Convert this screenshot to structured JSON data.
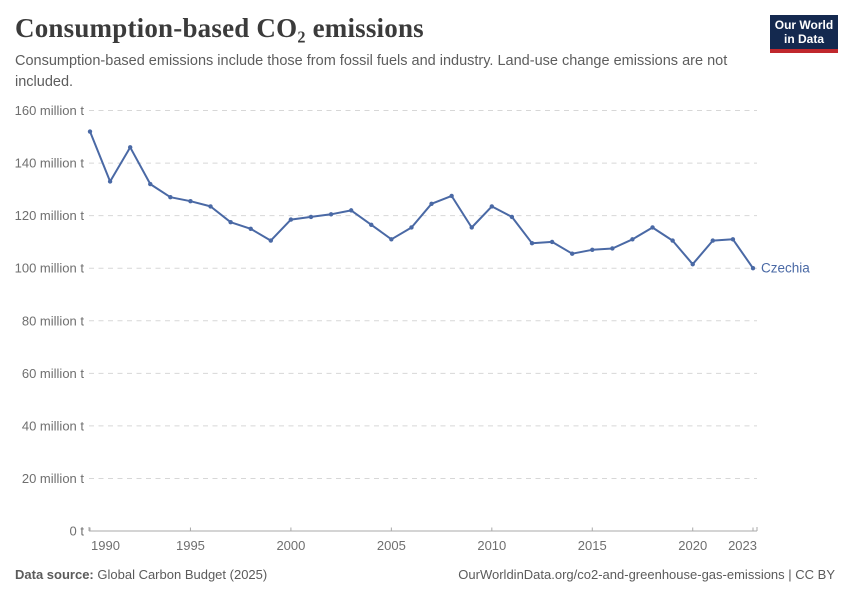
{
  "header": {
    "title": "Consumption-based CO₂ emissions",
    "subtitle": "Consumption-based emissions include those from fossil fuels and industry. Land-use change emissions are not included.",
    "logo": {
      "line1": "Our World",
      "line2": "in Data"
    }
  },
  "chart_data": {
    "type": "line",
    "title": "Consumption-based CO₂ emissions",
    "entity_label": "Czechia",
    "unit": "million t",
    "x": [
      1990,
      1991,
      1992,
      1993,
      1994,
      1995,
      1996,
      1997,
      1998,
      1999,
      2000,
      2001,
      2002,
      2003,
      2004,
      2005,
      2006,
      2007,
      2008,
      2009,
      2010,
      2011,
      2012,
      2013,
      2014,
      2015,
      2016,
      2017,
      2018,
      2019,
      2020,
      2021,
      2022,
      2023
    ],
    "series": [
      {
        "name": "Czechia",
        "color": "#4a69a5",
        "values": [
          152,
          133,
          146,
          132,
          127,
          125.5,
          123.5,
          117.5,
          115,
          110.5,
          118.5,
          119.5,
          120.5,
          122,
          116.5,
          111,
          115.5,
          124.5,
          127.5,
          115.5,
          123.5,
          119.5,
          109.5,
          110,
          105.5,
          107,
          107.5,
          111,
          115.5,
          110.5,
          101.5,
          110.5,
          111,
          100
        ]
      }
    ],
    "ylim": [
      0,
      160
    ],
    "xlim": [
      1990,
      2023
    ],
    "yticks": [
      0,
      20,
      40,
      60,
      80,
      100,
      120,
      140,
      160
    ],
    "ytick_labels": [
      "0 t",
      "20 million t",
      "40 million t",
      "60 million t",
      "80 million t",
      "100 million t",
      "120 million t",
      "140 million t",
      "160 million t"
    ],
    "xticks": [
      1990,
      1995,
      2000,
      2005,
      2010,
      2015,
      2020,
      2023
    ],
    "grid": "horizontal dashed",
    "legend": "inline end-of-line label"
  },
  "colors": {
    "line": "#4a69a5",
    "grid": "#d7d7d7",
    "axis": "#a8a8a8",
    "tick_label": "#6f6f6f",
    "title": "#3b3b3b",
    "subtitle": "#5d5d5d",
    "logo_bg": "#14294f",
    "logo_red": "#c0282d"
  },
  "footer": {
    "source_label": "Data source:",
    "source_value": "Global Carbon Budget (2025)",
    "credit": "OurWorldinData.org/co2-and-greenhouse-gas-emissions | CC BY"
  }
}
